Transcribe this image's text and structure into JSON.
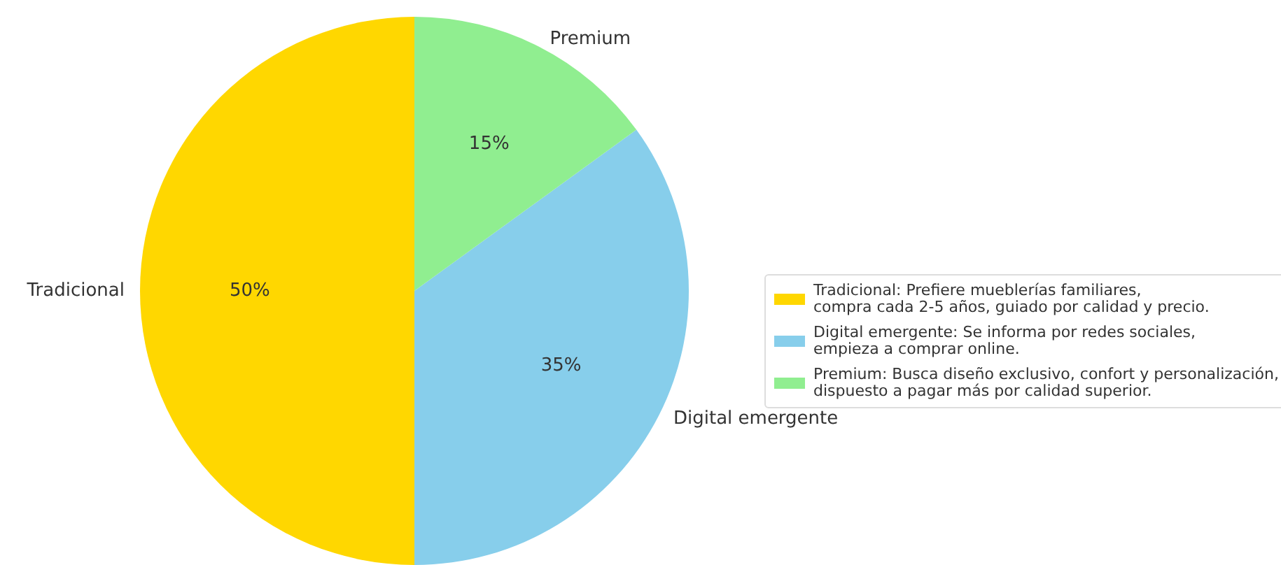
{
  "chart_data": {
    "type": "pie",
    "categories": [
      "Tradicional",
      "Digital emergente",
      "Premium"
    ],
    "values": [
      50,
      35,
      15
    ],
    "colors": [
      "#ffd700",
      "#87ceeb",
      "#90ee90"
    ],
    "value_labels": [
      "50%",
      "35%",
      "15%"
    ],
    "annotations": [
      "Tradicional: Prefiere mueblerías familiares,\ncompra cada 2-5 años, guiado por calidad y precio.",
      "Digital emergente: Se informa por redes sociales,\nempieza a comprar online.",
      "Premium: Busca diseño exclusivo, confort y personalización,\ndispuesto a pagar más por calidad superior."
    ]
  }
}
